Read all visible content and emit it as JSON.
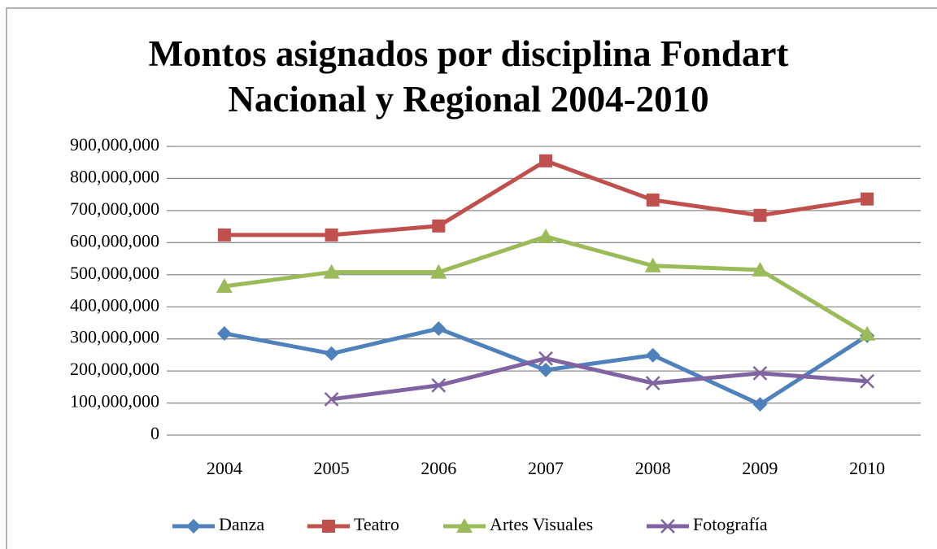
{
  "chart_data": {
    "type": "line",
    "title": "Montos asignados por disciplina Fondart Nacional y Regional 2004-2010",
    "categories": [
      "2004",
      "2005",
      "2006",
      "2007",
      "2008",
      "2009",
      "2010"
    ],
    "series": [
      {
        "name": "Danza",
        "color": "#4f81bd",
        "marker": "diamond",
        "values": [
          317000000,
          254000000,
          332000000,
          203000000,
          249000000,
          96000000,
          310000000
        ]
      },
      {
        "name": "Teatro",
        "color": "#c0504d",
        "marker": "square",
        "values": [
          624000000,
          624000000,
          652000000,
          855000000,
          733000000,
          685000000,
          736000000
        ]
      },
      {
        "name": "Artes Visuales",
        "color": "#9bbb59",
        "marker": "triangle",
        "values": [
          464000000,
          508000000,
          508000000,
          619000000,
          528000000,
          515000000,
          315000000
        ]
      },
      {
        "name": "Fotografía",
        "color": "#8064a2",
        "marker": "x",
        "values": [
          null,
          112000000,
          155000000,
          239000000,
          162000000,
          193000000,
          168000000
        ]
      }
    ],
    "ylim": [
      0,
      900000000
    ],
    "yticks": [
      0,
      {
        "value": 100000000,
        "label": "100,000,000"
      },
      {
        "value": 200000000,
        "label": "200,000,000"
      },
      {
        "value": 300000000,
        "label": "300,000,000"
      },
      {
        "value": 400000000,
        "label": "400,000,000"
      },
      {
        "value": 500000000,
        "label": "500,000,000"
      },
      {
        "value": 600000000,
        "label": "600,000,000"
      },
      {
        "value": 700000000,
        "label": "700,000,000"
      },
      {
        "value": 800000000,
        "label": "800,000,000"
      },
      {
        "value": 900000000,
        "label": "900,000,000"
      }
    ],
    "grid": true,
    "legend": "bottom"
  }
}
